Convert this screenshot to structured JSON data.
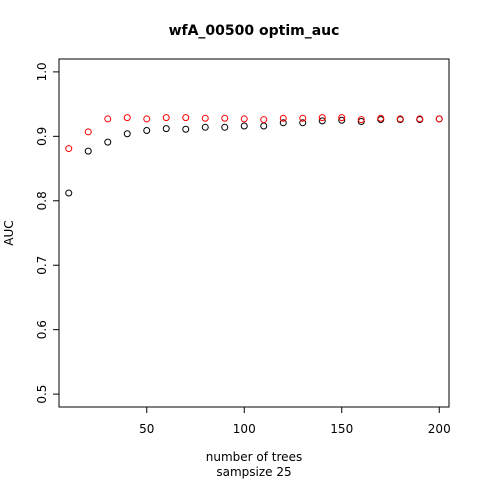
{
  "chart_data": {
    "type": "scatter",
    "title": "wfA_00500 optim_auc",
    "xlabel": "number of trees",
    "xlabel2": "sampsize 25",
    "ylabel": "AUC",
    "xlim": [
      5,
      205
    ],
    "ylim": [
      0.48,
      1.02
    ],
    "xticks": [
      50,
      100,
      150,
      200
    ],
    "yticks": [
      0.5,
      0.6,
      0.7,
      0.8,
      0.9,
      1.0
    ],
    "ytick_labels": [
      "0.5",
      "0.6",
      "0.7",
      "0.8",
      "0.9",
      "1.0"
    ],
    "grid": false,
    "series": [
      {
        "color": "#000000",
        "x": [
          10,
          20,
          30,
          40,
          50,
          60,
          70,
          80,
          90,
          100,
          110,
          120,
          130,
          140,
          150,
          160,
          170,
          180,
          190,
          200
        ],
        "y": [
          0.812,
          0.877,
          0.891,
          0.904,
          0.909,
          0.912,
          0.911,
          0.914,
          0.914,
          0.916,
          0.916,
          0.921,
          0.921,
          0.924,
          0.925,
          0.923,
          0.926,
          0.926,
          0.926,
          0.927
        ]
      },
      {
        "color": "#ff0000",
        "x": [
          10,
          20,
          30,
          40,
          50,
          60,
          70,
          80,
          90,
          100,
          110,
          120,
          130,
          140,
          150,
          160,
          170,
          180,
          190,
          200
        ],
        "y": [
          0.881,
          0.907,
          0.927,
          0.929,
          0.927,
          0.929,
          0.929,
          0.928,
          0.928,
          0.927,
          0.926,
          0.928,
          0.928,
          0.929,
          0.929,
          0.926,
          0.928,
          0.927,
          0.927,
          0.927
        ]
      }
    ]
  }
}
